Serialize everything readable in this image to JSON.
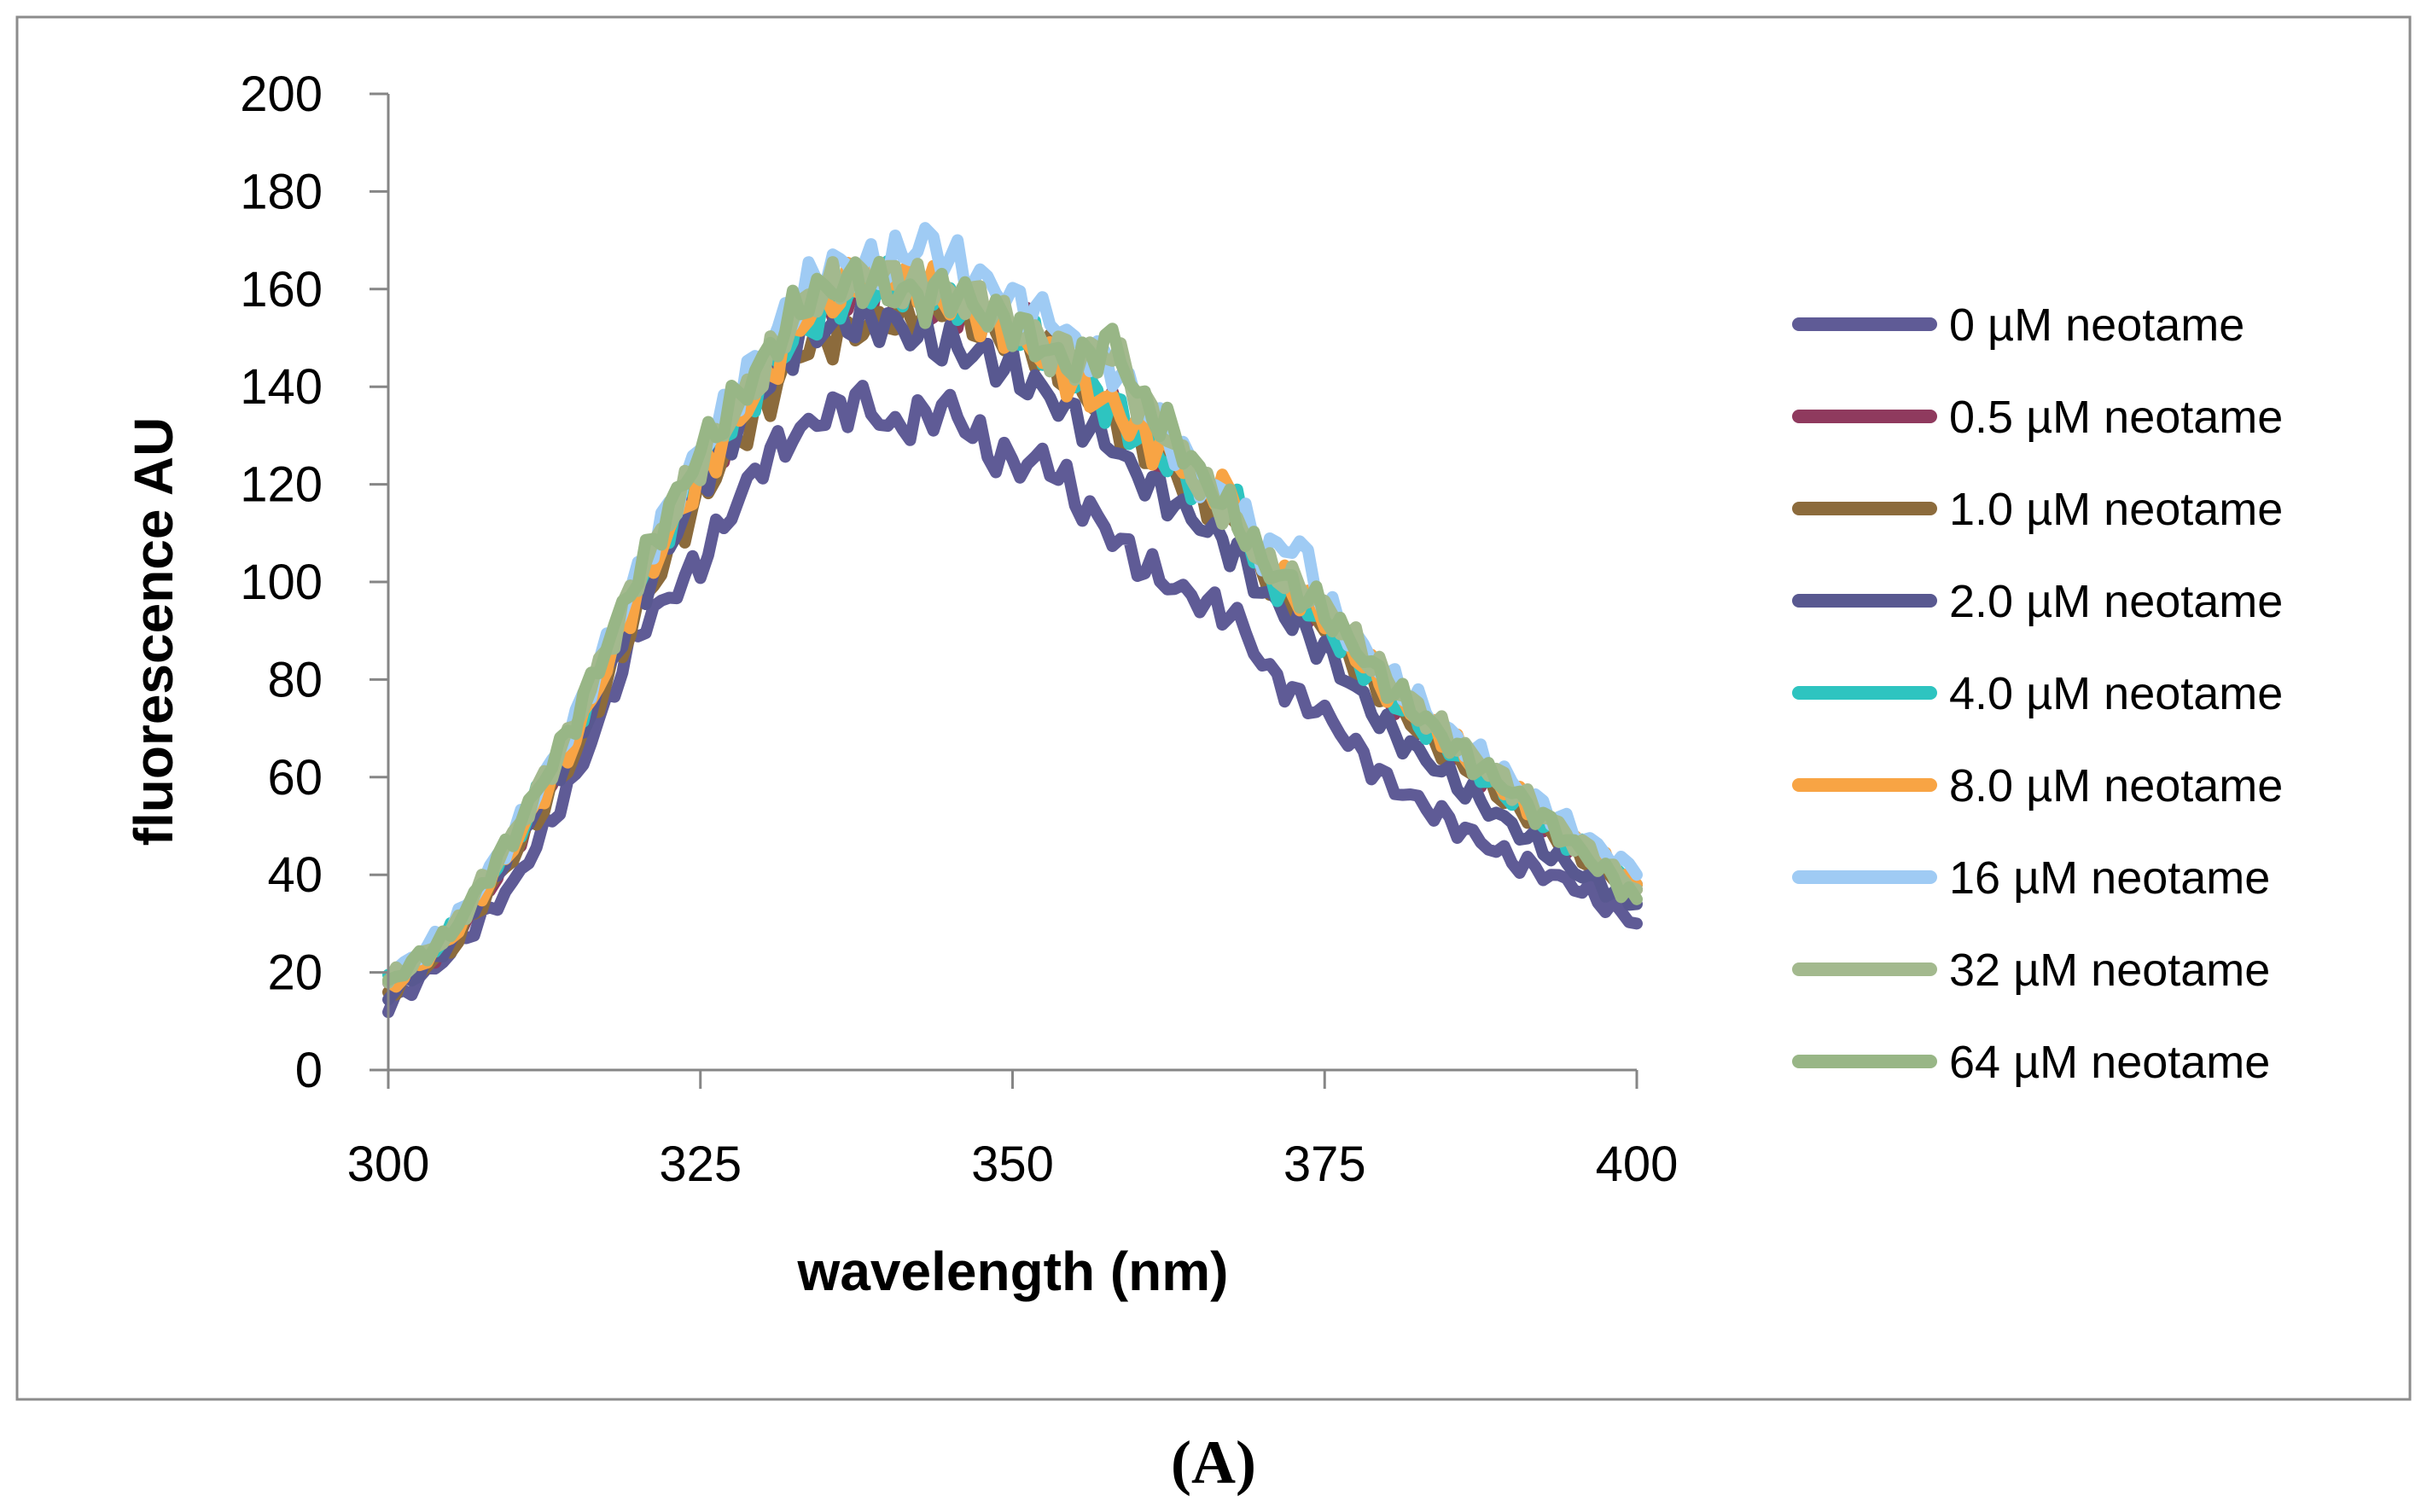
{
  "chart_data": {
    "type": "line",
    "title": "",
    "panel_label": "(A)",
    "xlabel": "wavelength (nm)",
    "ylabel": "fluorescence AU",
    "xlim": [
      300,
      400
    ],
    "ylim": [
      0,
      200
    ],
    "x_ticks": [
      300,
      325,
      350,
      375,
      400
    ],
    "y_ticks": [
      0,
      20,
      40,
      60,
      80,
      100,
      120,
      140,
      160,
      180,
      200
    ],
    "legend_position": "right",
    "grid": false,
    "x": [
      300,
      305,
      310,
      315,
      320,
      325,
      330,
      333,
      335,
      338,
      340,
      343,
      345,
      348,
      350,
      353,
      355,
      358,
      360,
      363,
      365,
      368,
      370,
      373,
      375,
      380,
      385,
      390,
      395,
      400
    ],
    "series": [
      {
        "name": "0 µM neotame",
        "color": "#5f5b96",
        "values": [
          13,
          24,
          38,
          60,
          90,
          104,
          125,
          131,
          134,
          138,
          131,
          134,
          136,
          127,
          124,
          125,
          117,
          110,
          104,
          99,
          96,
          93,
          83,
          76,
          73,
          59,
          51,
          43,
          38,
          30
        ]
      },
      {
        "name": "0.5 µM neotame",
        "color": "#8f3a5e",
        "values": [
          17,
          26,
          45,
          68,
          98,
          122,
          140,
          157,
          155,
          158,
          160,
          156,
          157,
          155,
          153,
          148,
          142,
          136,
          130,
          124,
          120,
          115,
          103,
          96,
          92,
          77,
          66,
          55,
          45,
          38
        ]
      },
      {
        "name": "1.0 µM neotame",
        "color": "#8c6b3c",
        "values": [
          16,
          25,
          44,
          65,
          94,
          118,
          136,
          148,
          150,
          152,
          154,
          155,
          156,
          152,
          150,
          146,
          140,
          134,
          128,
          123,
          118,
          113,
          102,
          95,
          91,
          76,
          65,
          55,
          45,
          37
        ]
      },
      {
        "name": "2.0 µM neotame",
        "color": "#585890",
        "values": [
          15,
          26,
          46,
          67,
          96,
          120,
          140,
          150,
          152,
          154,
          153,
          150,
          148,
          146,
          143,
          138,
          134,
          128,
          122,
          116,
          112,
          106,
          98,
          91,
          86,
          70,
          60,
          50,
          41,
          34
        ]
      },
      {
        "name": "4.0 µM neotame",
        "color": "#2ec4c0",
        "values": [
          18,
          28,
          47,
          70,
          100,
          124,
          142,
          152,
          156,
          160,
          161,
          159,
          158,
          155,
          152,
          148,
          142,
          136,
          130,
          124,
          120,
          116,
          102,
          96,
          92,
          77,
          66,
          56,
          46,
          38
        ]
      },
      {
        "name": "8.0 µM neotame",
        "color": "#f8a444",
        "values": [
          17,
          27,
          46,
          68,
          98,
          122,
          141,
          153,
          157,
          162,
          163,
          161,
          158,
          154,
          151,
          146,
          141,
          136,
          131,
          125,
          121,
          117,
          104,
          97,
          93,
          78,
          67,
          57,
          47,
          38
        ]
      },
      {
        "name": "16 µM neotame",
        "color": "#9fcbf4",
        "values": [
          19,
          29,
          48,
          72,
          102,
          127,
          147,
          158,
          165,
          164,
          165,
          170,
          166,
          161,
          158,
          154,
          149,
          144,
          138,
          128,
          121,
          115,
          106,
          108,
          95,
          81,
          69,
          59,
          49,
          40
        ]
      },
      {
        "name": "32 µM neotame",
        "color": "#a3b98e",
        "values": [
          18,
          28,
          48,
          71,
          101,
          125,
          143,
          156,
          160,
          163,
          163,
          160,
          159,
          157,
          152,
          148,
          146,
          148,
          138,
          128,
          120,
          112,
          104,
          99,
          95,
          80,
          68,
          58,
          47,
          37
        ]
      },
      {
        "name": "64 µM neotame",
        "color": "#98b686",
        "values": [
          18,
          28,
          48,
          72,
          102,
          127,
          145,
          157,
          160,
          162,
          160,
          158,
          160,
          155,
          153,
          147,
          144,
          150,
          138,
          130,
          122,
          113,
          104,
          98,
          94,
          79,
          67,
          57,
          46,
          35
        ]
      }
    ]
  }
}
